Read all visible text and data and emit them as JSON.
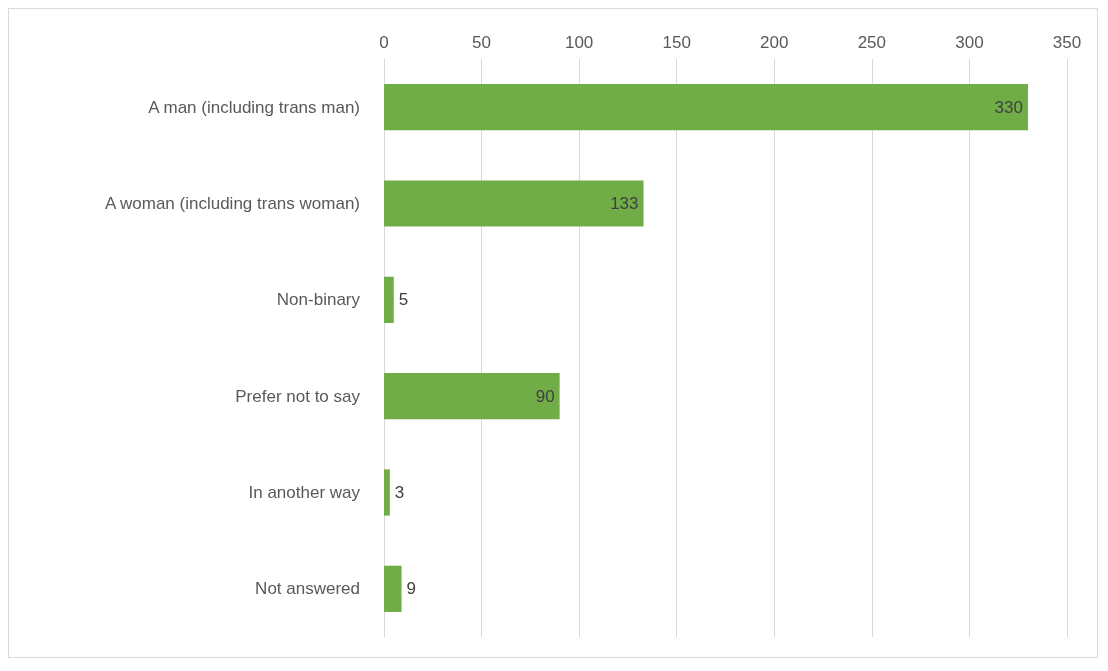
{
  "chart_data": {
    "type": "bar",
    "orientation": "horizontal",
    "categories": [
      "A man (including trans man)",
      "A woman (including trans woman)",
      "Non-binary",
      "Prefer not to say",
      "In another way",
      "Not answered"
    ],
    "values": [
      330,
      133,
      5,
      90,
      3,
      9
    ],
    "color": "#70ad47",
    "xlim": [
      0,
      350
    ],
    "xticks": [
      0,
      50,
      100,
      150,
      200,
      250,
      300,
      350
    ],
    "grid": "x",
    "data_labels": true
  }
}
